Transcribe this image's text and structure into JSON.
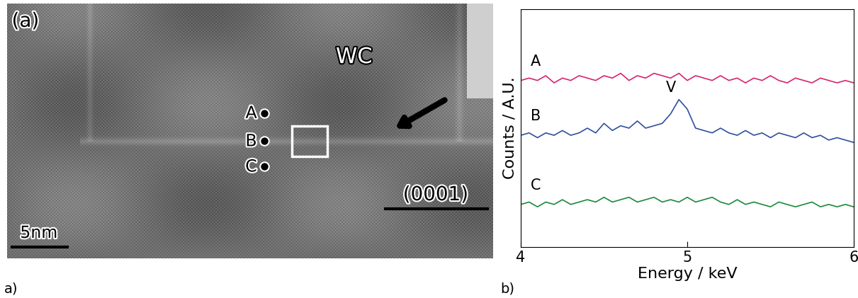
{
  "image_panel": {
    "panel_label": "(a)",
    "phase_label": "WC",
    "points": [
      "A",
      "B",
      "C"
    ],
    "plane_label": "(0001)",
    "scale_bar": "5nm"
  },
  "caption_labels": [
    "a)",
    "b)"
  ],
  "chart_data": {
    "type": "line",
    "xlabel": "Energy / keV",
    "ylabel": "Counts / A.U.",
    "x": [
      4.0,
      4.05,
      4.1,
      4.15,
      4.2,
      4.25,
      4.3,
      4.35,
      4.4,
      4.45,
      4.5,
      4.55,
      4.6,
      4.65,
      4.7,
      4.75,
      4.8,
      4.85,
      4.9,
      4.95,
      5.0,
      5.05,
      5.1,
      5.15,
      5.2,
      5.25,
      5.3,
      5.35,
      5.4,
      5.45,
      5.5,
      5.55,
      5.6,
      5.65,
      5.7,
      5.75,
      5.8,
      5.85,
      5.9,
      5.95,
      6.0
    ],
    "series": [
      {
        "name": "A",
        "color": "#d6246e",
        "values": [
          0.7,
          0.71,
          0.7,
          0.72,
          0.69,
          0.71,
          0.7,
          0.72,
          0.71,
          0.7,
          0.72,
          0.71,
          0.73,
          0.7,
          0.72,
          0.71,
          0.73,
          0.72,
          0.71,
          0.73,
          0.7,
          0.72,
          0.71,
          0.7,
          0.72,
          0.7,
          0.71,
          0.69,
          0.71,
          0.7,
          0.72,
          0.7,
          0.69,
          0.71,
          0.7,
          0.69,
          0.71,
          0.7,
          0.69,
          0.7,
          0.69
        ]
      },
      {
        "name": "B",
        "color": "#2f4f9f",
        "values": [
          0.47,
          0.48,
          0.46,
          0.48,
          0.47,
          0.49,
          0.47,
          0.48,
          0.5,
          0.48,
          0.52,
          0.49,
          0.51,
          0.5,
          0.53,
          0.5,
          0.51,
          0.52,
          0.56,
          0.62,
          0.58,
          0.5,
          0.49,
          0.48,
          0.5,
          0.48,
          0.47,
          0.49,
          0.47,
          0.48,
          0.46,
          0.48,
          0.47,
          0.46,
          0.48,
          0.46,
          0.47,
          0.45,
          0.46,
          0.45,
          0.44
        ]
      },
      {
        "name": "C",
        "color": "#1a8a3a",
        "values": [
          0.18,
          0.19,
          0.17,
          0.19,
          0.18,
          0.2,
          0.18,
          0.19,
          0.2,
          0.19,
          0.21,
          0.19,
          0.2,
          0.21,
          0.19,
          0.2,
          0.21,
          0.19,
          0.2,
          0.19,
          0.21,
          0.19,
          0.2,
          0.21,
          0.19,
          0.18,
          0.2,
          0.18,
          0.19,
          0.18,
          0.17,
          0.19,
          0.18,
          0.17,
          0.18,
          0.19,
          0.17,
          0.18,
          0.17,
          0.18,
          0.17
        ]
      }
    ],
    "annotations": [
      {
        "text": "V",
        "x": 4.9,
        "y": 0.64
      }
    ],
    "xlim": [
      4,
      6
    ],
    "ylim": [
      0,
      1
    ],
    "xticks": [
      4,
      5,
      6
    ],
    "tick_labels": "x"
  }
}
